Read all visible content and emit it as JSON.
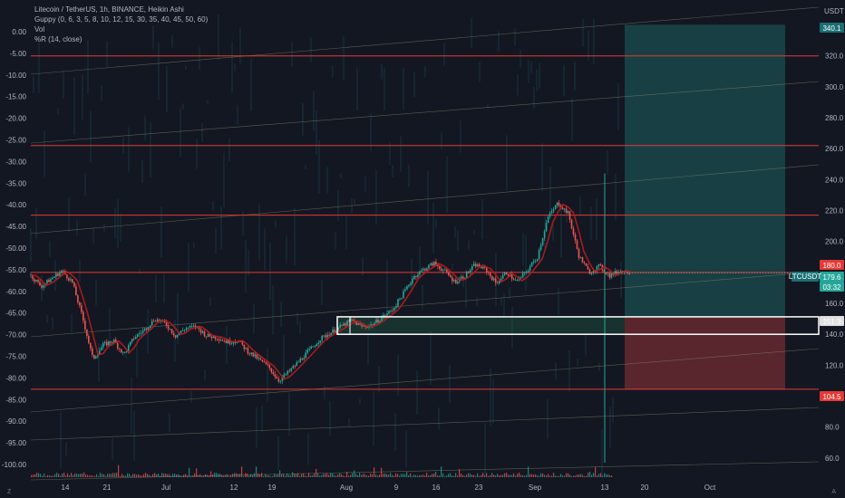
{
  "legend": {
    "title": "Litecoin / TetherUS, 1h, BINANCE, Heikin Ashi",
    "guppy": "Guppy (0, 6, 3, 5, 8, 10, 12, 15, 30, 35, 40, 45, 50, 60)",
    "vol": "Vol",
    "wr": "%R (14, close)"
  },
  "currency": "USDT",
  "corner_left": "Z",
  "corner_right": "A",
  "left_axis": [
    "0.00",
    "-5.00",
    "-10.00",
    "-15.00",
    "-20.00",
    "-25.00",
    "-30.00",
    "-35.00",
    "-40.00",
    "-45.00",
    "-50.00",
    "-55.00",
    "-60.00",
    "-65.00",
    "-70.00",
    "-75.00",
    "-80.00",
    "-85.00",
    "-90.00",
    "-95.00",
    "-100.00"
  ],
  "right_axis": [
    "320.0",
    "300.0",
    "280.0",
    "260.0",
    "240.0",
    "220.0",
    "200.0",
    "160.0",
    "140.0",
    "120.0",
    "100.0",
    "80.0",
    "60.0"
  ],
  "x_axis": [
    "14",
    "21",
    "Jul",
    "12",
    "19",
    "Aug",
    "9",
    "16",
    "23",
    "Sep",
    "13",
    "20",
    "Oct"
  ],
  "price_tags": {
    "top": "340.1",
    "resistance": "180.0",
    "symbol": "LTCUSDT",
    "last": "179.6",
    "countdown": "03:32",
    "entry": "151.3",
    "stop": "104.5"
  },
  "colors": {
    "background": "#131722",
    "hline": "#e53935",
    "candle_up": "#26a69a",
    "candle_down": "#ef5350",
    "ema_red": "#b71c1c",
    "target_zone": "#1b4d50",
    "stop_zone": "#6b2a31",
    "profit_band": "#1e4a3a"
  },
  "chart_data": {
    "type": "candlestick",
    "symbol": "LTCUSDT",
    "interval": "1h",
    "y_range": [
      57,
      345
    ],
    "horizontal_levels": [
      320,
      262,
      217,
      180,
      104.5
    ],
    "entry_box": [
      140,
      151.3
    ],
    "long_position": {
      "entry": 151.3,
      "target": 340.1,
      "stop": 104.5
    },
    "series": [
      {
        "t": 0,
        "p": 178
      },
      {
        "t": 2,
        "p": 171
      },
      {
        "t": 4,
        "p": 176
      },
      {
        "t": 6,
        "p": 181
      },
      {
        "t": 8,
        "p": 174
      },
      {
        "t": 10,
        "p": 151
      },
      {
        "t": 12,
        "p": 124
      },
      {
        "t": 14,
        "p": 133
      },
      {
        "t": 16,
        "p": 136
      },
      {
        "t": 18,
        "p": 127
      },
      {
        "t": 20,
        "p": 138
      },
      {
        "t": 22,
        "p": 143
      },
      {
        "t": 24,
        "p": 150
      },
      {
        "t": 26,
        "p": 147
      },
      {
        "t": 28,
        "p": 139
      },
      {
        "t": 30,
        "p": 144
      },
      {
        "t": 32,
        "p": 145
      },
      {
        "t": 34,
        "p": 139
      },
      {
        "t": 36,
        "p": 138
      },
      {
        "t": 38,
        "p": 135
      },
      {
        "t": 40,
        "p": 136
      },
      {
        "t": 42,
        "p": 129
      },
      {
        "t": 44,
        "p": 124
      },
      {
        "t": 46,
        "p": 119
      },
      {
        "t": 48,
        "p": 110
      },
      {
        "t": 50,
        "p": 116
      },
      {
        "t": 52,
        "p": 123
      },
      {
        "t": 54,
        "p": 130
      },
      {
        "t": 56,
        "p": 137
      },
      {
        "t": 58,
        "p": 141
      },
      {
        "t": 60,
        "p": 145
      },
      {
        "t": 62,
        "p": 149
      },
      {
        "t": 64,
        "p": 145
      },
      {
        "t": 66,
        "p": 146
      },
      {
        "t": 68,
        "p": 151
      },
      {
        "t": 70,
        "p": 156
      },
      {
        "t": 72,
        "p": 166
      },
      {
        "t": 74,
        "p": 177
      },
      {
        "t": 76,
        "p": 182
      },
      {
        "t": 78,
        "p": 186
      },
      {
        "t": 80,
        "p": 181
      },
      {
        "t": 82,
        "p": 174
      },
      {
        "t": 84,
        "p": 178
      },
      {
        "t": 86,
        "p": 185
      },
      {
        "t": 88,
        "p": 182
      },
      {
        "t": 90,
        "p": 173
      },
      {
        "t": 92,
        "p": 180
      },
      {
        "t": 94,
        "p": 174
      },
      {
        "t": 96,
        "p": 181
      },
      {
        "t": 98,
        "p": 190
      },
      {
        "t": 100,
        "p": 215
      },
      {
        "t": 102,
        "p": 225
      },
      {
        "t": 104,
        "p": 218
      },
      {
        "t": 106,
        "p": 191
      },
      {
        "t": 108,
        "p": 180
      },
      {
        "t": 110,
        "p": 184
      },
      {
        "t": 112,
        "p": 178
      },
      {
        "t": 114,
        "p": 181
      },
      {
        "t": 116,
        "p": 180
      }
    ]
  }
}
